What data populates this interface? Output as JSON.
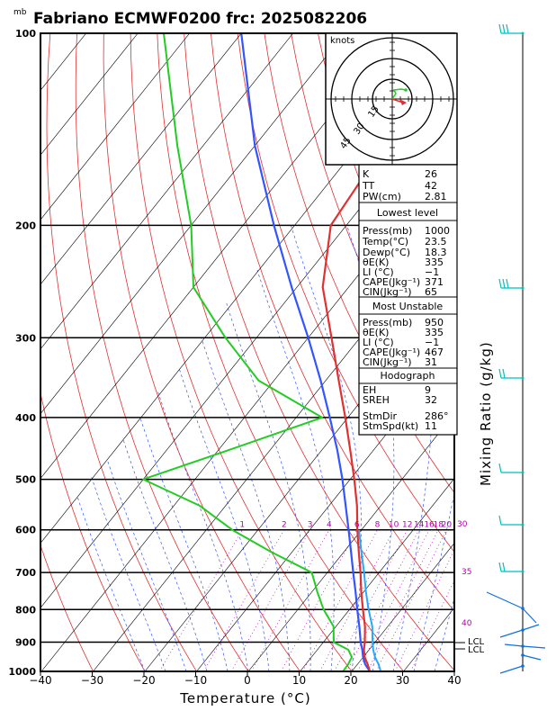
{
  "title": "Fabriano ECMWF0200 frc: 2025082206",
  "pressure_unit": "mb",
  "chart_data": {
    "type": "skew-t",
    "xlabel": "Temperature (°C)",
    "ylabel_right": "Mixing Ratio (g/kg)",
    "xlim": [
      -40,
      40
    ],
    "ylim_pressure": [
      1000,
      100
    ],
    "x_ticks": [
      "−40",
      "−30",
      "−20",
      "−10",
      "0",
      "10",
      "20",
      "30",
      "40"
    ],
    "x_tick_values": [
      -40,
      -30,
      -20,
      -10,
      0,
      10,
      20,
      30,
      40
    ],
    "pressure_ticks": [
      "100",
      "200",
      "300",
      "400",
      "500",
      "600",
      "700",
      "800",
      "900",
      "1000"
    ],
    "pressure_tick_values": [
      100,
      200,
      300,
      400,
      500,
      600,
      700,
      800,
      900,
      1000
    ],
    "mixing_ratio_labels": [
      "1",
      "2",
      "3",
      "4",
      "6",
      "8",
      "10",
      "12",
      "14",
      "16",
      "18",
      "20",
      "25",
      "30"
    ],
    "mixing_ratio_values": [
      1,
      2,
      3,
      4,
      6,
      8,
      10,
      12,
      14,
      16,
      18,
      20,
      25,
      30
    ],
    "theta_e_labels": [
      "30",
      "35",
      "40"
    ],
    "lcl_labels": [
      "LCL",
      "LCL"
    ],
    "temperature_profile": [
      {
        "p": 1000,
        "t": 23.5
      },
      {
        "p": 975,
        "t": 22.0
      },
      {
        "p": 950,
        "t": 20.3
      },
      {
        "p": 925,
        "t": 19.0
      },
      {
        "p": 900,
        "t": 18.0
      },
      {
        "p": 850,
        "t": 15.6
      },
      {
        "p": 800,
        "t": 12.6
      },
      {
        "p": 750,
        "t": 9.5
      },
      {
        "p": 700,
        "t": 6.4
      },
      {
        "p": 650,
        "t": 2.9
      },
      {
        "p": 600,
        "t": -0.8
      },
      {
        "p": 550,
        "t": -4.6
      },
      {
        "p": 500,
        "t": -9.2
      },
      {
        "p": 450,
        "t": -14.5
      },
      {
        "p": 400,
        "t": -20.5
      },
      {
        "p": 350,
        "t": -27.5
      },
      {
        "p": 300,
        "t": -35.5
      },
      {
        "p": 250,
        "t": -45.0
      },
      {
        "p": 200,
        "t": -53.0
      },
      {
        "p": 150,
        "t": -55.0
      },
      {
        "p": 100,
        "t": -58.0
      }
    ],
    "dewpoint_profile": [
      {
        "p": 1000,
        "t": 18.3
      },
      {
        "p": 975,
        "t": 18.2
      },
      {
        "p": 950,
        "t": 17.8
      },
      {
        "p": 925,
        "t": 16.0
      },
      {
        "p": 900,
        "t": 12.0
      },
      {
        "p": 850,
        "t": 9.5
      },
      {
        "p": 800,
        "t": 5.0
      },
      {
        "p": 750,
        "t": 1.0
      },
      {
        "p": 700,
        "t": -3.0
      },
      {
        "p": 650,
        "t": -14.0
      },
      {
        "p": 600,
        "t": -25.0
      },
      {
        "p": 550,
        "t": -35.0
      },
      {
        "p": 500,
        "t": -50.0
      },
      {
        "p": 450,
        "t": -38.0
      },
      {
        "p": 400,
        "t": -25.0
      },
      {
        "p": 350,
        "t": -43.0
      },
      {
        "p": 300,
        "t": -56.0
      },
      {
        "p": 250,
        "t": -70.0
      },
      {
        "p": 200,
        "t": -80.0
      },
      {
        "p": 150,
        "t": -95.0
      },
      {
        "p": 100,
        "t": -115.0
      }
    ],
    "parcel_profile": [
      {
        "p": 1000,
        "t": 23.5
      },
      {
        "p": 975,
        "t": 21.5
      },
      {
        "p": 950,
        "t": 20.0
      },
      {
        "p": 925,
        "t": 18.7
      },
      {
        "p": 900,
        "t": 17.2
      },
      {
        "p": 850,
        "t": 14.5
      },
      {
        "p": 800,
        "t": 11.5
      },
      {
        "p": 750,
        "t": 8.4
      },
      {
        "p": 700,
        "t": 5.0
      },
      {
        "p": 650,
        "t": 1.4
      },
      {
        "p": 600,
        "t": -2.5
      },
      {
        "p": 550,
        "t": -6.8
      },
      {
        "p": 500,
        "t": -11.5
      },
      {
        "p": 450,
        "t": -17.0
      },
      {
        "p": 400,
        "t": -23.5
      },
      {
        "p": 350,
        "t": -31.0
      },
      {
        "p": 300,
        "t": -40.0
      },
      {
        "p": 250,
        "t": -51.0
      },
      {
        "p": 200,
        "t": -64.0
      },
      {
        "p": 150,
        "t": -80.0
      },
      {
        "p": 100,
        "t": -100.0
      }
    ],
    "virtual_temp_profile": [
      {
        "p": 1000,
        "t": 25.6
      },
      {
        "p": 975,
        "t": 24.1
      },
      {
        "p": 950,
        "t": 22.3
      },
      {
        "p": 925,
        "t": 20.8
      },
      {
        "p": 900,
        "t": 19.5
      },
      {
        "p": 850,
        "t": 17.0
      },
      {
        "p": 800,
        "t": 13.7
      },
      {
        "p": 750,
        "t": 10.4
      },
      {
        "p": 700,
        "t": 7.1
      },
      {
        "p": 650,
        "t": 3.4
      },
      {
        "p": 600,
        "t": -0.5
      }
    ]
  },
  "hodograph": {
    "unit": "knots",
    "ring_labels": [
      "15",
      "30",
      "45"
    ]
  },
  "indices": {
    "top": [
      {
        "label": "K",
        "value": "26"
      },
      {
        "label": "TT",
        "value": "42"
      },
      {
        "label": "PW(cm)",
        "value": "2.81"
      }
    ],
    "lowest_title": "Lowest level",
    "lowest": [
      {
        "label": "Press(mb)",
        "value": "1000"
      },
      {
        "label": "Temp(°C)",
        "value": "23.5"
      },
      {
        "label": "Dewp(°C)",
        "value": "18.3"
      },
      {
        "label": "θE(K)",
        "value": "335"
      },
      {
        "label": "LI (°C)",
        "value": "−1"
      },
      {
        "label": "CAPE(Jkg⁻¹)",
        "value": "371"
      },
      {
        "label": "CIN(Jkg⁻¹)",
        "value": "65"
      }
    ],
    "unstable_title": "Most Unstable",
    "unstable": [
      {
        "label": "Press(mb)",
        "value": "950"
      },
      {
        "label": "θE(K)",
        "value": "335"
      },
      {
        "label": "LI (°C)",
        "value": "−1"
      },
      {
        "label": "CAPE(Jkg⁻¹)",
        "value": "467"
      },
      {
        "label": "CIN(Jkg⁻¹)",
        "value": "31"
      }
    ],
    "hodo_title": "Hodograph",
    "hodo": [
      {
        "label": "EH",
        "value": "9"
      },
      {
        "label": "SREH",
        "value": "32"
      },
      {
        "label": "StmDir",
        "value": "286°"
      },
      {
        "label": "StmSpd(kt)",
        "value": "11"
      }
    ]
  },
  "colors": {
    "temperature": "#e03030",
    "dewpoint": "#22cc22",
    "parcel": "#3355ff",
    "virtual": "#22aaff",
    "isotherm": "#000000",
    "dry_adiabat": "#e03030",
    "moist_adiabat": "#3355ff",
    "mixing_ratio": "#b000b0",
    "wind_barb": "#00c0c0",
    "wind_barb_low": "#1070e0"
  }
}
